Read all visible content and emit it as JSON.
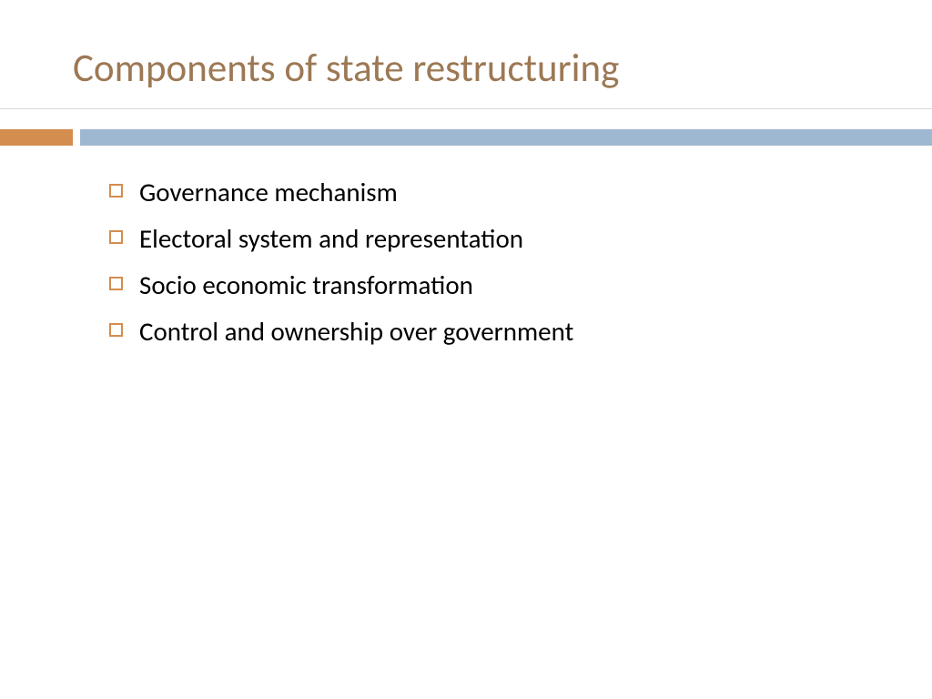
{
  "slide": {
    "title": "Components of state restructuring",
    "bullets": [
      "Governance mechanism",
      "Electoral system and representation",
      "Socio economic transformation",
      "Control and ownership over government"
    ]
  },
  "styling": {
    "title_color": "#9c7854",
    "title_fontsize": 43,
    "divider_orange_color": "#d38d4f",
    "divider_blue_color": "#9fb8d1",
    "divider_height": 18,
    "divider_orange_width": 80,
    "bullet_marker_color": "#d38d4f",
    "bullet_marker_size": 15,
    "bullet_text_fontsize": 29,
    "bullet_text_color": "#000000",
    "background_color": "#ffffff"
  }
}
